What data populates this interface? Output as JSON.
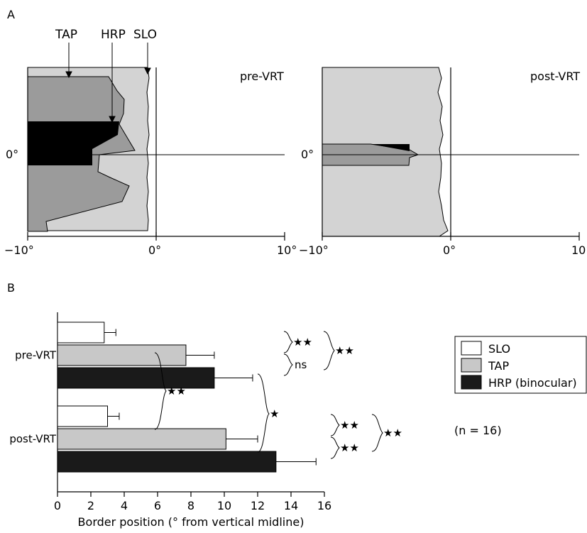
{
  "panel_a": {
    "letter": "A",
    "callouts": {
      "tap": "TAP",
      "hrp": "HRP",
      "slo": "SLO"
    },
    "zero_label": "0°",
    "colors": {
      "SLO": "#d3d3d3",
      "TAP": "#9b9b9b",
      "HRP": "#000000"
    }
  },
  "panel_b": {
    "letter": "B",
    "legend": {
      "items": [
        {
          "label": "SLO",
          "color": "#ffffff"
        },
        {
          "label": "TAP",
          "color": "#c8c8c8"
        },
        {
          "label": "HRP (binocular)",
          "color": "#1a1a1a"
        }
      ]
    },
    "n_note": "(n = 16)"
  },
  "chart_data": [
    {
      "type": "area",
      "title": "pre-VRT",
      "xlabel": "",
      "ylabel": "",
      "xlim": [
        -10,
        10
      ],
      "x_ticks": [
        "−10°",
        "0°",
        "10°"
      ],
      "y_axis_label": "0°",
      "series": [
        {
          "name": "SLO",
          "border_deg": [
            -1.0,
            -0.9,
            -0.9,
            -1.0,
            -0.9,
            -1.0,
            -1.0,
            -0.9,
            -1.0,
            -0.9,
            -1.0,
            -0.9
          ]
        },
        {
          "name": "TAP",
          "border_deg": [
            -10.0,
            -3.7,
            -2.5,
            -3.0,
            -1.5,
            -4.5,
            -2.1,
            -2.7,
            -10.0
          ]
        },
        {
          "name": "HRP",
          "border_deg": [
            -3.0,
            -5.0
          ]
        }
      ]
    },
    {
      "type": "area",
      "title": "post-VRT",
      "xlabel": "",
      "ylabel": "",
      "xlim": [
        -10,
        10
      ],
      "x_ticks": [
        "−10°",
        "0°",
        "10°"
      ],
      "y_axis_label": "0°",
      "series": [
        {
          "name": "SLO",
          "border_deg": [
            -1.4,
            -0.8,
            -0.9,
            -1.0,
            -0.8,
            -1.2,
            -0.9,
            -0.8,
            -1.0,
            -1.2
          ]
        },
        {
          "name": "TAP",
          "border_deg": [
            -3.3,
            -2.5,
            -3.3
          ]
        },
        {
          "name": "HRP",
          "border_deg": [
            -3.3
          ]
        }
      ]
    },
    {
      "type": "bar",
      "orientation": "horizontal",
      "xlabel": "Border position (° from vertical midline)",
      "xlim": [
        0,
        16
      ],
      "x_ticks": [
        "0",
        "2",
        "4",
        "6",
        "8",
        "10",
        "12",
        "14",
        "16"
      ],
      "categories": [
        "pre-VRT",
        "post-VRT"
      ],
      "series": [
        {
          "name": "SLO",
          "values": [
            2.8,
            3.0
          ],
          "errors": [
            0.7,
            0.7
          ],
          "color": "#ffffff"
        },
        {
          "name": "TAP",
          "values": [
            7.7,
            10.1
          ],
          "errors": [
            1.7,
            1.9
          ],
          "color": "#c8c8c8"
        },
        {
          "name": "HRP (binocular)",
          "values": [
            9.4,
            13.1
          ],
          "errors": [
            2.3,
            2.4
          ],
          "color": "#1a1a1a"
        }
      ],
      "significance": [
        {
          "label": "★★"
        },
        {
          "label": "ns"
        },
        {
          "label": "★★"
        },
        {
          "label": "★★"
        },
        {
          "label": "★"
        },
        {
          "label": "★★"
        },
        {
          "label": "★★"
        },
        {
          "label": "★★"
        }
      ]
    }
  ]
}
